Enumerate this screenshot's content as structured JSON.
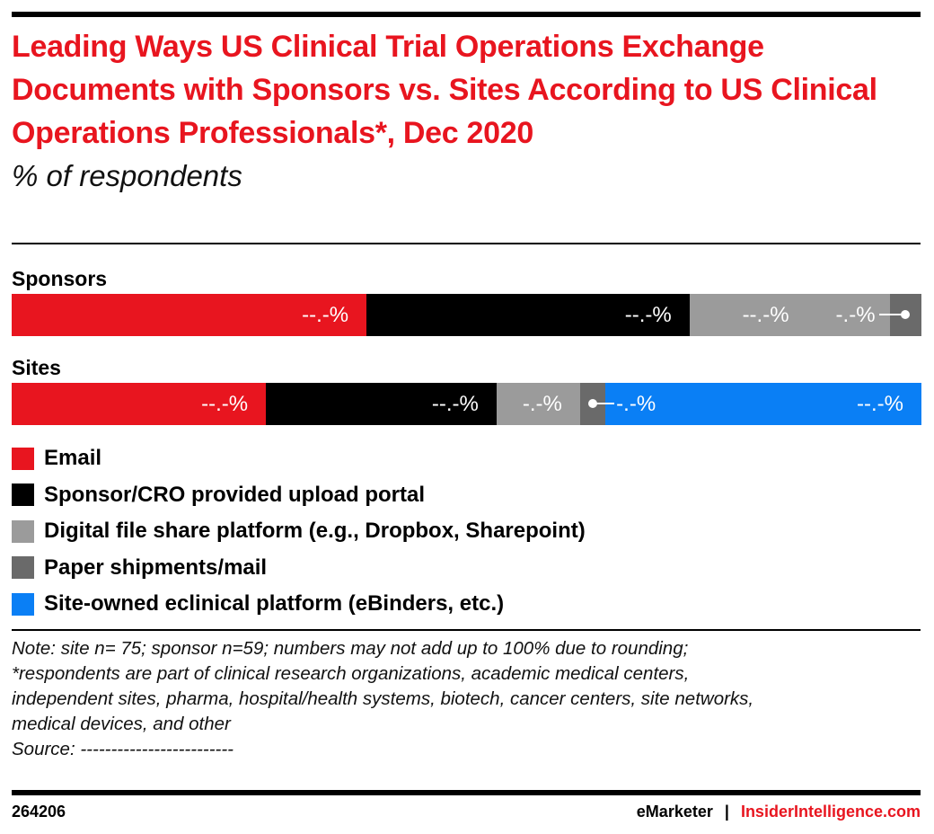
{
  "title": "Leading Ways US Clinical Trial Operations Exchange Documents with Sponsors vs. Sites According to US Clinical Operations Professionals*, Dec 2020",
  "subtitle": "% of respondents",
  "chart_data": {
    "type": "bar",
    "orientation": "horizontal-stacked-100",
    "categories": [
      "Sponsors",
      "Sites"
    ],
    "series": [
      {
        "name": "Email",
        "color": "#e8151f",
        "values": [
          39,
          28
        ],
        "labels": [
          "--.-%",
          "--.-%"
        ]
      },
      {
        "name": "Sponsor/CRO provided upload portal",
        "color": "#000000",
        "values": [
          35.5,
          25.4
        ],
        "labels": [
          "--.-%",
          "--.-%"
        ]
      },
      {
        "name": "Digital file share platform (e.g., Dropbox, Sharepoint)",
        "color": "#9b9b9b",
        "values": [
          22,
          9.2
        ],
        "labels": [
          "--.-%",
          "-.-%"
        ]
      },
      {
        "name": "Paper shipments/mail",
        "color": "#6a6a6a",
        "values": [
          3.5,
          2.8
        ],
        "labels": [
          "-.-%",
          "-.-%"
        ]
      },
      {
        "name": "Site-owned eclinical platform (eBinders, etc.)",
        "color": "#0a7ff5",
        "values": [
          0,
          34.8
        ],
        "labels": [
          "",
          "--.-%"
        ]
      }
    ],
    "legend_position": "bottom",
    "grid": false
  },
  "note": [
    "Note: site n= 75; sponsor n=59; numbers may not add up to 100% due to rounding;",
    "*respondents are part of clinical research organizations, academic medical centers,",
    "independent sites, pharma, hospital/health systems, biotech, cancer centers, site networks,",
    "medical devices, and other",
    "Source: -------------------------"
  ],
  "footer": {
    "id": "264206",
    "brand1": "eMarketer",
    "sep": "|",
    "brand2": "InsiderIntelligence.com"
  }
}
